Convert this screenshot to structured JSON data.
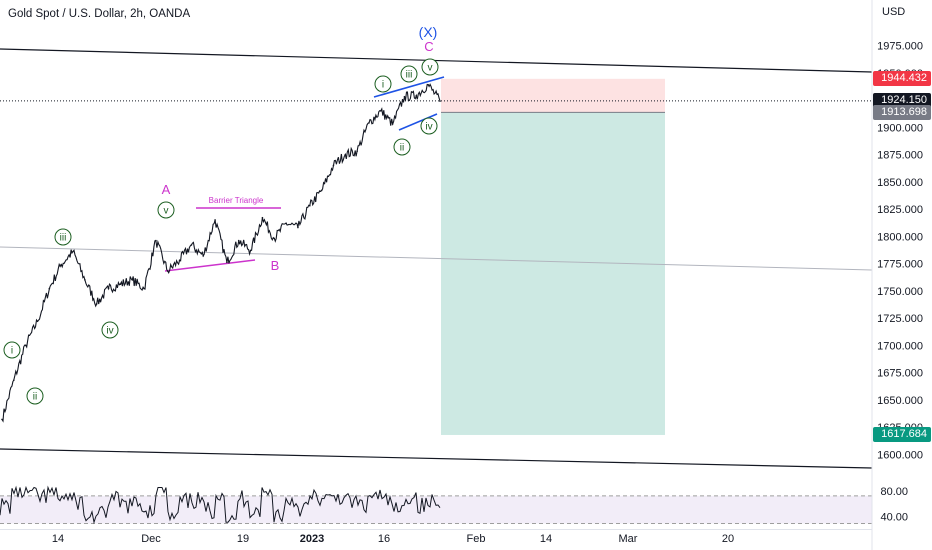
{
  "header": {
    "title": "Gold Spot / U.S. Dollar, 2h, OANDA"
  },
  "axis": {
    "currency": "USD",
    "y_ticks": [
      1975,
      1950,
      1925,
      1900,
      1875,
      1850,
      1825,
      1800,
      1775,
      1750,
      1725,
      1700,
      1675,
      1650,
      1625,
      1600
    ],
    "y_tick_labels": [
      "1975.000",
      "1950.000",
      "1925.000",
      "1900.000",
      "1875.000",
      "1850.000",
      "1825.000",
      "1800.000",
      "1775.000",
      "1750.000",
      "1725.000",
      "1700.000",
      "1675.000",
      "1650.000",
      "1625.000",
      "1600.000"
    ],
    "x_labels": [
      "14",
      "Dec",
      "19",
      "2023",
      "16",
      "Feb",
      "14",
      "Mar",
      "20"
    ]
  },
  "price_tags": [
    {
      "label": "1944.432",
      "value": 1944.432,
      "bg": "#f23645",
      "fg": "#ffffff"
    },
    {
      "label": "1924.150",
      "value": 1924.15,
      "bg": "#131722",
      "fg": "#ffffff"
    },
    {
      "label": "1913.698",
      "value": 1913.698,
      "bg": "#787b86",
      "fg": "#ffffff"
    },
    {
      "label": "1617.684",
      "value": 1617.684,
      "bg": "#089981",
      "fg": "#ffffff"
    }
  ],
  "position": {
    "type": "short",
    "entry": 1913.698,
    "stop": 1944.432,
    "target": 1617.684,
    "stop_color": "#fde2e2",
    "target_color": "#cde9e3"
  },
  "annotations": {
    "wave_labels": [
      {
        "text": "i",
        "circled": true,
        "color": "#1b5e20"
      },
      {
        "text": "ii",
        "circled": true,
        "color": "#1b5e20"
      },
      {
        "text": "iii",
        "circled": true,
        "color": "#1b5e20"
      },
      {
        "text": "iv",
        "circled": true,
        "color": "#1b5e20"
      },
      {
        "text": "v",
        "circled": true,
        "color": "#1b5e20"
      },
      {
        "text": "A",
        "circled": false,
        "color": "#cc33cc"
      },
      {
        "text": "B",
        "circled": false,
        "color": "#cc33cc"
      },
      {
        "text": "i",
        "circled": true,
        "color": "#1b5e20"
      },
      {
        "text": "ii",
        "circled": true,
        "color": "#1b5e20"
      },
      {
        "text": "iii",
        "circled": true,
        "color": "#1b5e20"
      },
      {
        "text": "iv",
        "circled": true,
        "color": "#1b5e20"
      },
      {
        "text": "v",
        "circled": true,
        "color": "#1b5e20"
      },
      {
        "text": "C",
        "circled": false,
        "color": "#cc33cc"
      },
      {
        "text": "(X)",
        "circled": false,
        "color": "#1e53e5"
      }
    ],
    "triangle_label": "Barrier Triangle"
  },
  "rsi": {
    "y_ticks": [
      80,
      40
    ],
    "y_tick_labels": [
      "80.00",
      "40.00"
    ]
  },
  "chart_data": {
    "type": "line",
    "title": "Gold Spot / U.S. Dollar, 2h, OANDA",
    "xlabel": "",
    "ylabel": "USD",
    "ylim": [
      1590,
      1985
    ],
    "x": [
      "Nov 3",
      "Nov 4",
      "Nov 7",
      "Nov 10",
      "Nov 11",
      "Nov 14",
      "Nov 15",
      "Nov 17",
      "Nov 21",
      "Nov 23",
      "Nov 25",
      "Nov 28",
      "Nov 30",
      "Dec 1",
      "Dec 5",
      "Dec 7",
      "Dec 9",
      "Dec 12",
      "Dec 13",
      "Dec 15",
      "Dec 16",
      "Dec 19",
      "Dec 21",
      "Dec 23",
      "Dec 27",
      "Dec 29",
      "Jan 2",
      "Jan 4",
      "Jan 6",
      "Jan 9",
      "Jan 11",
      "Jan 13",
      "Jan 16",
      "Jan 18",
      "Jan 20",
      "Jan 23",
      "Jan 24",
      "Jan 25"
    ],
    "series": [
      {
        "values": [
          1632,
          1668,
          1700,
          1722,
          1752,
          1774,
          1786,
          1760,
          1738,
          1752,
          1756,
          1760,
          1752,
          1796,
          1768,
          1778,
          1792,
          1782,
          1815,
          1776,
          1796,
          1787,
          1817,
          1798,
          1812,
          1808,
          1828,
          1842,
          1865,
          1875,
          1878,
          1904,
          1915,
          1903,
          1928,
          1929,
          1939,
          1924
        ]
      }
    ],
    "rsi": {
      "ylim": [
        25,
        90
      ],
      "levels": [
        70,
        30
      ]
    }
  }
}
